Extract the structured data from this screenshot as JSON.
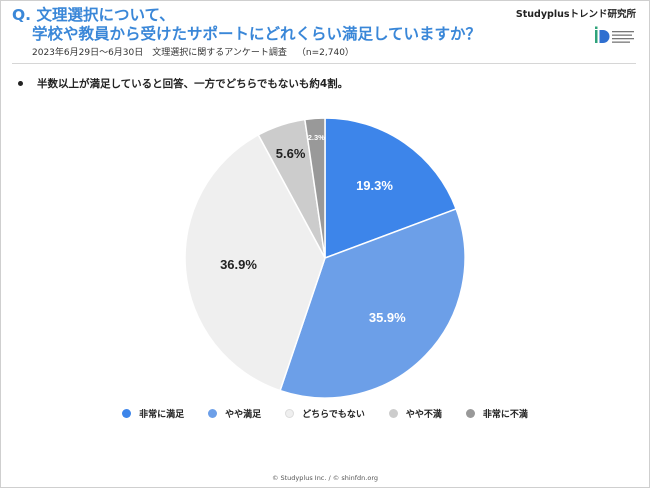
{
  "header": {
    "title_line1": "Q. 文理選択について、",
    "title_line2": "学校や教員から受けたサポートにどれくらい満足していますか？",
    "subtitle": "2023年6月29日〜6月30日　文理選択に関するアンケート調査",
    "sample": "（n=2,740）",
    "brand": "Studyplusトレンド研究所"
  },
  "summary": "半数以上が満足していると回答、一方でどちらでもないも約4割。",
  "chart_data": {
    "type": "pie",
    "start": "top",
    "direction": "clockwise",
    "slices": [
      {
        "label": "非常に満足",
        "value": 19.3,
        "display": "19.3%",
        "color": "#3d85ea",
        "text_color": "#ffffff"
      },
      {
        "label": "やや満足",
        "value": 35.9,
        "display": "35.9%",
        "color": "#6c9fe8",
        "text_color": "#ffffff"
      },
      {
        "label": "どちらでもない",
        "value": 36.9,
        "display": "36.9%",
        "color": "#efefef",
        "text_color": "#222222"
      },
      {
        "label": "やや不満",
        "value": 5.6,
        "display": "5.6%",
        "color": "#cccccc",
        "text_color": "#222222"
      },
      {
        "label": "非常に不満",
        "value": 2.3,
        "display": "2.3%",
        "color": "#999999",
        "text_color": "#ffffff"
      }
    ],
    "legend_position": "bottom"
  },
  "footer": "© Studyplus Inc.  /  © shinfdn.org"
}
